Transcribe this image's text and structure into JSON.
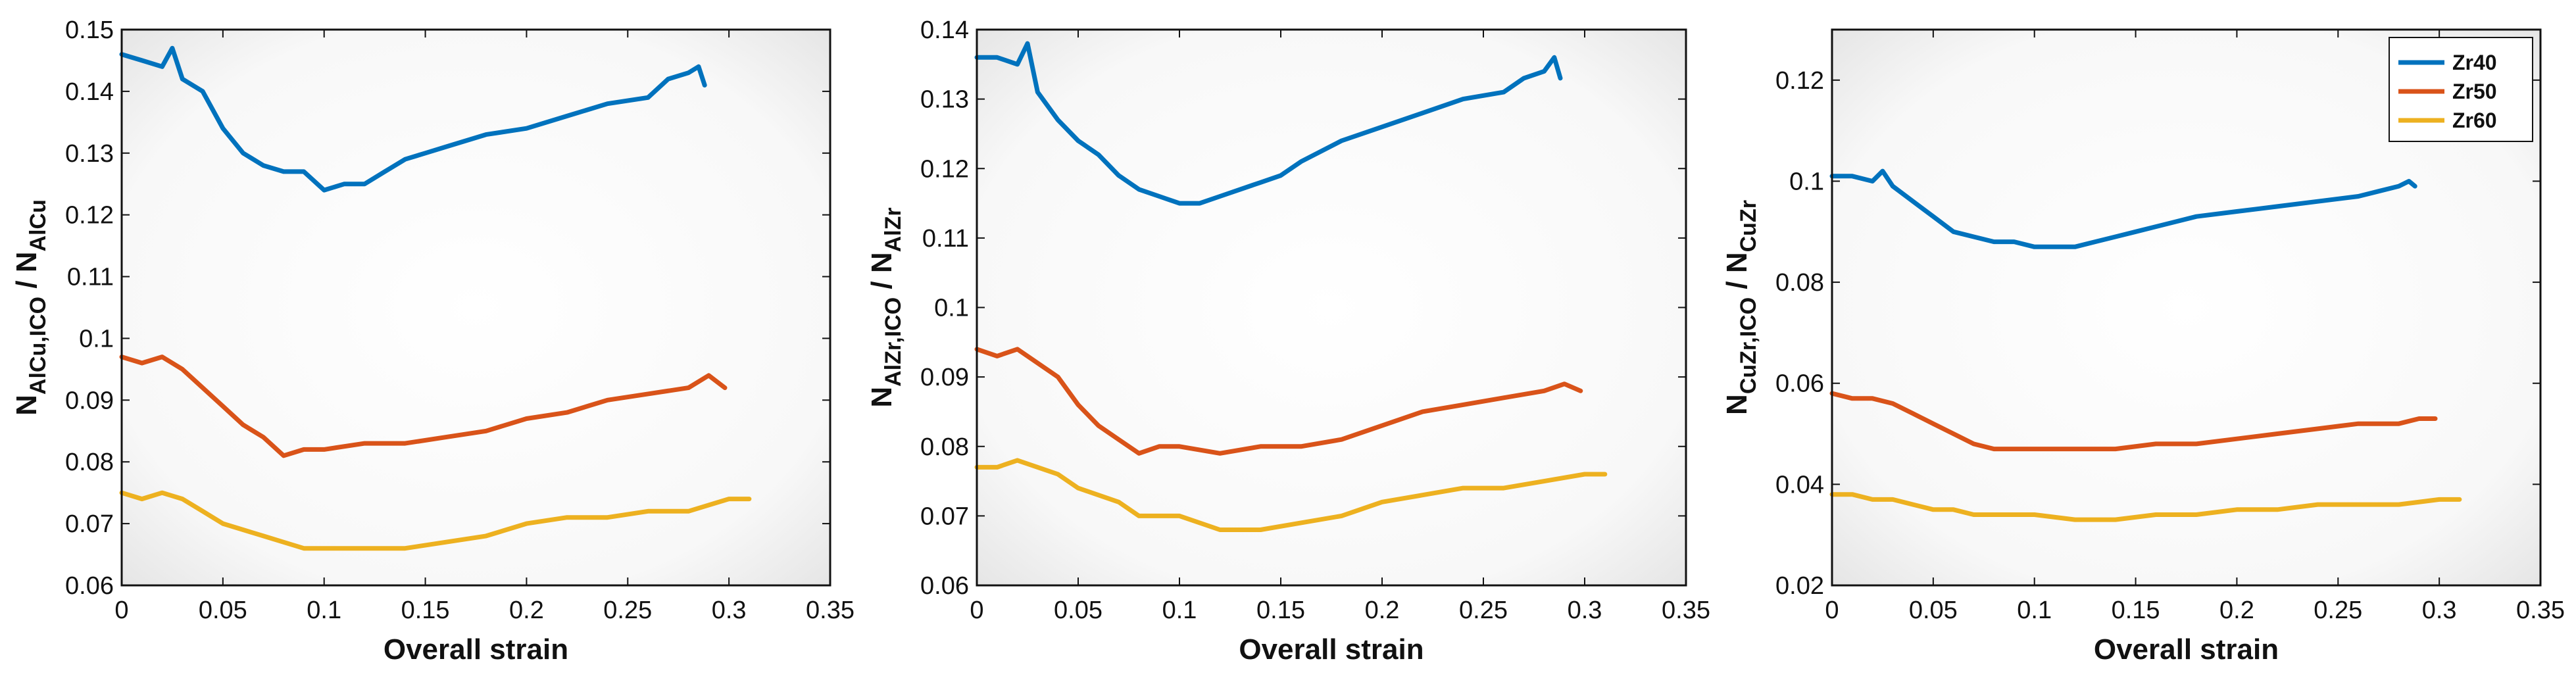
{
  "colors": {
    "Zr40": "#0072BD",
    "Zr50": "#D95319",
    "Zr60": "#EDB120",
    "axis": "#111111"
  },
  "chart_data": [
    {
      "type": "line",
      "xlabel": "Overall strain",
      "ylabel": {
        "main": "N",
        "sub1": "AlCu,ICO",
        "sep": " / N",
        "sub2": "AlCu"
      },
      "xlim": [
        0,
        0.35
      ],
      "ylim": [
        0.06,
        0.15
      ],
      "xticks": [
        0,
        0.05,
        0.1,
        0.15,
        0.2,
        0.25,
        0.3,
        0.35
      ],
      "xtick_labels": [
        "0",
        "0.05",
        "0.1",
        "0.15",
        "0.2",
        "0.25",
        "0.3",
        "0.35"
      ],
      "yticks": [
        0.06,
        0.07,
        0.08,
        0.09,
        0.1,
        0.11,
        0.12,
        0.13,
        0.14,
        0.15
      ],
      "ytick_labels": [
        "0.06",
        "0.07",
        "0.08",
        "0.09",
        "0.1",
        "0.11",
        "0.12",
        "0.13",
        "0.14",
        "0.15"
      ],
      "series": [
        {
          "name": "Zr40",
          "x": [
            0,
            0.01,
            0.02,
            0.025,
            0.03,
            0.04,
            0.05,
            0.06,
            0.07,
            0.08,
            0.09,
            0.1,
            0.11,
            0.12,
            0.13,
            0.14,
            0.15,
            0.16,
            0.18,
            0.2,
            0.22,
            0.24,
            0.26,
            0.27,
            0.28,
            0.285,
            0.288
          ],
          "y": [
            0.146,
            0.145,
            0.144,
            0.147,
            0.142,
            0.14,
            0.134,
            0.13,
            0.128,
            0.127,
            0.127,
            0.124,
            0.125,
            0.125,
            0.127,
            0.129,
            0.13,
            0.131,
            0.133,
            0.134,
            0.136,
            0.138,
            0.139,
            0.142,
            0.143,
            0.144,
            0.141
          ]
        },
        {
          "name": "Zr50",
          "x": [
            0,
            0.01,
            0.02,
            0.03,
            0.04,
            0.05,
            0.06,
            0.07,
            0.08,
            0.09,
            0.1,
            0.12,
            0.14,
            0.16,
            0.18,
            0.2,
            0.22,
            0.24,
            0.26,
            0.28,
            0.29,
            0.298
          ],
          "y": [
            0.097,
            0.096,
            0.097,
            0.095,
            0.092,
            0.089,
            0.086,
            0.084,
            0.081,
            0.082,
            0.082,
            0.083,
            0.083,
            0.084,
            0.085,
            0.087,
            0.088,
            0.09,
            0.091,
            0.092,
            0.094,
            0.092
          ]
        },
        {
          "name": "Zr60",
          "x": [
            0,
            0.01,
            0.02,
            0.03,
            0.04,
            0.05,
            0.06,
            0.07,
            0.08,
            0.09,
            0.1,
            0.12,
            0.14,
            0.16,
            0.18,
            0.2,
            0.22,
            0.24,
            0.26,
            0.28,
            0.3,
            0.31
          ],
          "y": [
            0.075,
            0.074,
            0.075,
            0.074,
            0.072,
            0.07,
            0.069,
            0.068,
            0.067,
            0.066,
            0.066,
            0.066,
            0.066,
            0.067,
            0.068,
            0.07,
            0.071,
            0.071,
            0.072,
            0.072,
            0.074,
            0.074
          ]
        }
      ],
      "legend": null
    },
    {
      "type": "line",
      "xlabel": "Overall strain",
      "ylabel": {
        "main": "N",
        "sub1": "AlZr,ICO",
        "sep": " / N",
        "sub2": "AlZr"
      },
      "xlim": [
        0,
        0.35
      ],
      "ylim": [
        0.06,
        0.14
      ],
      "xticks": [
        0,
        0.05,
        0.1,
        0.15,
        0.2,
        0.25,
        0.3,
        0.35
      ],
      "xtick_labels": [
        "0",
        "0.05",
        "0.1",
        "0.15",
        "0.2",
        "0.25",
        "0.3",
        "0.35"
      ],
      "yticks": [
        0.06,
        0.07,
        0.08,
        0.09,
        0.1,
        0.11,
        0.12,
        0.13,
        0.14
      ],
      "ytick_labels": [
        "0.06",
        "0.07",
        "0.08",
        "0.09",
        "0.1",
        "0.11",
        "0.12",
        "0.13",
        "0.14"
      ],
      "series": [
        {
          "name": "Zr40",
          "x": [
            0,
            0.01,
            0.02,
            0.025,
            0.03,
            0.04,
            0.05,
            0.06,
            0.07,
            0.08,
            0.09,
            0.1,
            0.11,
            0.12,
            0.13,
            0.14,
            0.15,
            0.16,
            0.18,
            0.2,
            0.22,
            0.24,
            0.26,
            0.27,
            0.28,
            0.285,
            0.288
          ],
          "y": [
            0.136,
            0.136,
            0.135,
            0.138,
            0.131,
            0.127,
            0.124,
            0.122,
            0.119,
            0.117,
            0.116,
            0.115,
            0.115,
            0.116,
            0.117,
            0.118,
            0.119,
            0.121,
            0.124,
            0.126,
            0.128,
            0.13,
            0.131,
            0.133,
            0.134,
            0.136,
            0.133
          ]
        },
        {
          "name": "Zr50",
          "x": [
            0,
            0.01,
            0.02,
            0.03,
            0.04,
            0.05,
            0.06,
            0.07,
            0.08,
            0.09,
            0.1,
            0.12,
            0.14,
            0.16,
            0.18,
            0.2,
            0.22,
            0.24,
            0.26,
            0.28,
            0.29,
            0.298
          ],
          "y": [
            0.094,
            0.093,
            0.094,
            0.092,
            0.09,
            0.086,
            0.083,
            0.081,
            0.079,
            0.08,
            0.08,
            0.079,
            0.08,
            0.08,
            0.081,
            0.083,
            0.085,
            0.086,
            0.087,
            0.088,
            0.089,
            0.088
          ]
        },
        {
          "name": "Zr60",
          "x": [
            0,
            0.01,
            0.02,
            0.03,
            0.04,
            0.05,
            0.06,
            0.07,
            0.08,
            0.09,
            0.1,
            0.12,
            0.14,
            0.16,
            0.18,
            0.2,
            0.22,
            0.24,
            0.26,
            0.28,
            0.3,
            0.31
          ],
          "y": [
            0.077,
            0.077,
            0.078,
            0.077,
            0.076,
            0.074,
            0.073,
            0.072,
            0.07,
            0.07,
            0.07,
            0.068,
            0.068,
            0.069,
            0.07,
            0.072,
            0.073,
            0.074,
            0.074,
            0.075,
            0.076,
            0.076
          ]
        }
      ],
      "legend": null
    },
    {
      "type": "line",
      "xlabel": "Overall strain",
      "ylabel": {
        "main": "N",
        "sub1": "CuZr,ICO",
        "sep": " / N",
        "sub2": "CuZr"
      },
      "xlim": [
        0,
        0.35
      ],
      "ylim": [
        0.02,
        0.13
      ],
      "xticks": [
        0,
        0.05,
        0.1,
        0.15,
        0.2,
        0.25,
        0.3,
        0.35
      ],
      "xtick_labels": [
        "0",
        "0.05",
        "0.1",
        "0.15",
        "0.2",
        "0.25",
        "0.3",
        "0.35"
      ],
      "yticks": [
        0.02,
        0.04,
        0.06,
        0.08,
        0.1,
        0.12
      ],
      "ytick_labels": [
        "0.02",
        "0.04",
        "0.06",
        "0.08",
        "0.1",
        "0.12"
      ],
      "series": [
        {
          "name": "Zr40",
          "x": [
            0,
            0.01,
            0.02,
            0.025,
            0.03,
            0.04,
            0.05,
            0.06,
            0.07,
            0.08,
            0.09,
            0.1,
            0.11,
            0.12,
            0.13,
            0.14,
            0.15,
            0.16,
            0.18,
            0.2,
            0.22,
            0.24,
            0.26,
            0.27,
            0.28,
            0.285,
            0.288
          ],
          "y": [
            0.101,
            0.101,
            0.1,
            0.102,
            0.099,
            0.096,
            0.093,
            0.09,
            0.089,
            0.088,
            0.088,
            0.087,
            0.087,
            0.087,
            0.088,
            0.089,
            0.09,
            0.091,
            0.093,
            0.094,
            0.095,
            0.096,
            0.097,
            0.098,
            0.099,
            0.1,
            0.099
          ]
        },
        {
          "name": "Zr50",
          "x": [
            0,
            0.01,
            0.02,
            0.03,
            0.04,
            0.05,
            0.06,
            0.07,
            0.08,
            0.09,
            0.1,
            0.12,
            0.14,
            0.16,
            0.18,
            0.2,
            0.22,
            0.24,
            0.26,
            0.28,
            0.29,
            0.298
          ],
          "y": [
            0.058,
            0.057,
            0.057,
            0.056,
            0.054,
            0.052,
            0.05,
            0.048,
            0.047,
            0.047,
            0.047,
            0.047,
            0.047,
            0.048,
            0.048,
            0.049,
            0.05,
            0.051,
            0.052,
            0.052,
            0.053,
            0.053
          ]
        },
        {
          "name": "Zr60",
          "x": [
            0,
            0.01,
            0.02,
            0.03,
            0.04,
            0.05,
            0.06,
            0.07,
            0.08,
            0.09,
            0.1,
            0.12,
            0.14,
            0.16,
            0.18,
            0.2,
            0.22,
            0.24,
            0.26,
            0.28,
            0.3,
            0.31
          ],
          "y": [
            0.038,
            0.038,
            0.037,
            0.037,
            0.036,
            0.035,
            0.035,
            0.034,
            0.034,
            0.034,
            0.034,
            0.033,
            0.033,
            0.034,
            0.034,
            0.035,
            0.035,
            0.036,
            0.036,
            0.036,
            0.037,
            0.037
          ]
        }
      ],
      "legend": {
        "placement": "top-right",
        "entries": [
          "Zr40",
          "Zr50",
          "Zr60"
        ]
      }
    }
  ]
}
